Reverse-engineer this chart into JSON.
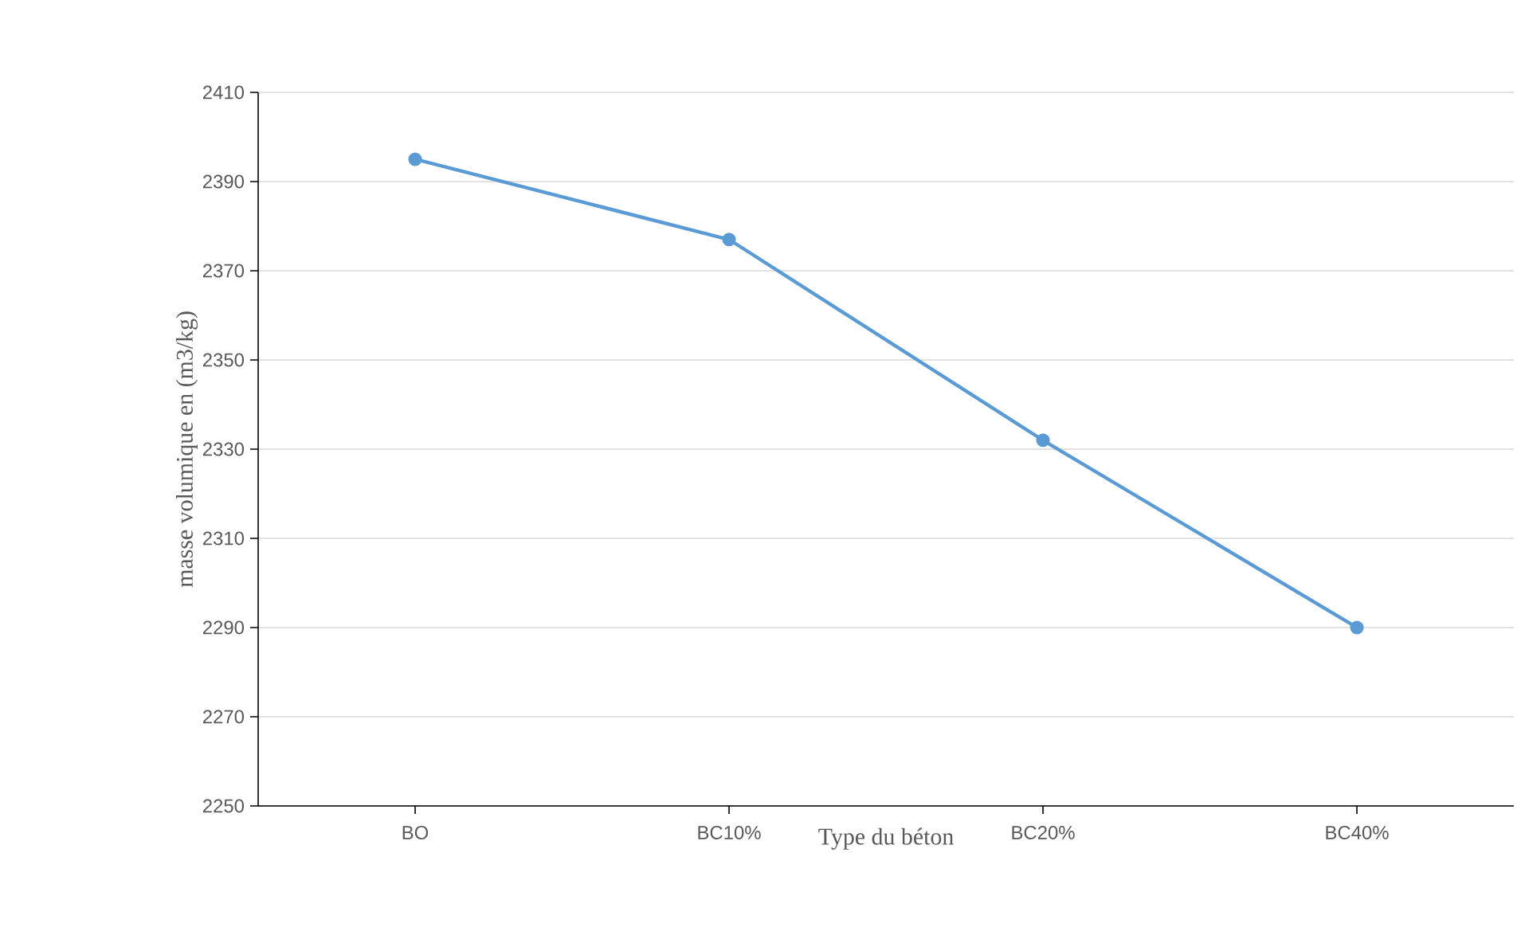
{
  "chart_data": {
    "type": "line",
    "xlabel": "Type du béton",
    "ylabel": "masse volumique en (m3/kg)",
    "categories": [
      "BO",
      "BC10%",
      "BC20%",
      "BC40%"
    ],
    "series": [
      {
        "color": "#5b9bd5",
        "values": [
          2395,
          2377,
          2332,
          2290
        ]
      }
    ],
    "ylim": [
      2250,
      2410
    ],
    "yticks": [
      2250,
      2270,
      2290,
      2310,
      2330,
      2350,
      2370,
      2390,
      2410
    ],
    "grid": "y",
    "marker": "circle",
    "line_style": "solid"
  }
}
